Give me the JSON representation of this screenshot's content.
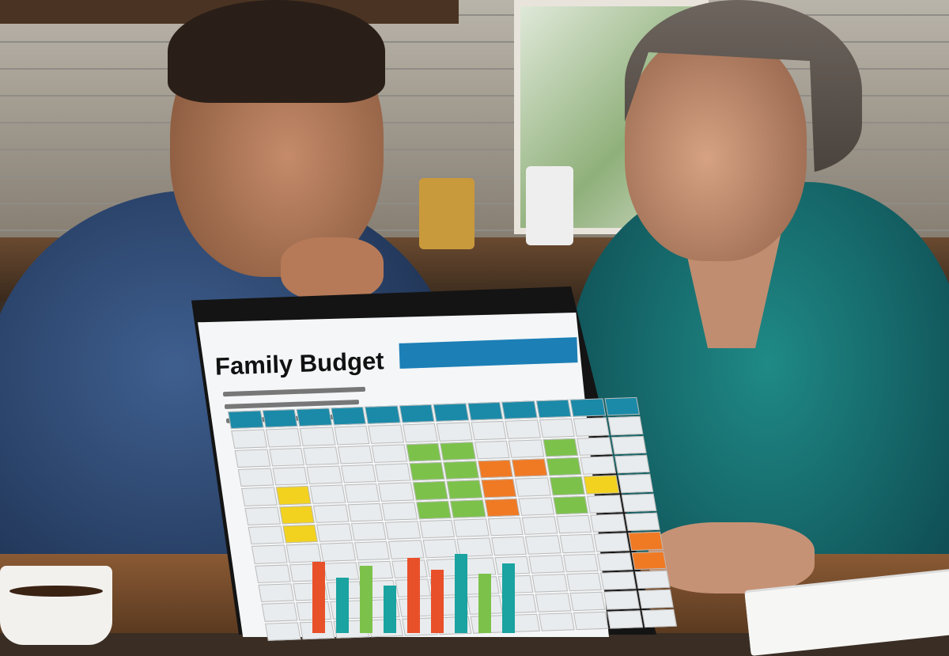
{
  "screen": {
    "title": "Family Budget",
    "header_color": "#1c7fb6",
    "cell_colors": {
      "header": "#1a8aa8",
      "green": "#7cc24a",
      "yellow": "#f2d21e",
      "orange": "#f07a24",
      "blank": "#e9ecee"
    },
    "bar_colors": [
      "#e8502a",
      "#1aa3a0",
      "#7cc24a",
      "#1aa3a0",
      "#e8502a"
    ]
  }
}
